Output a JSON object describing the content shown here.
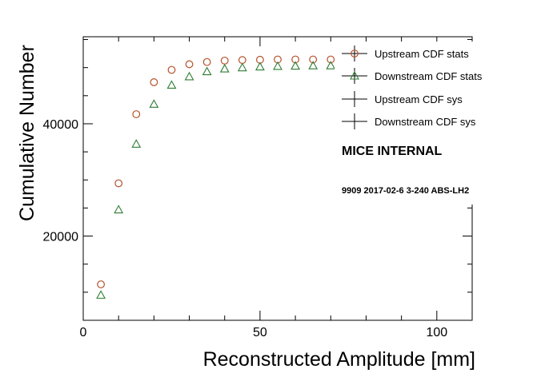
{
  "chart_data": {
    "type": "scatter",
    "xlabel": "Reconstructed Amplitude [mm]",
    "ylabel": "Cumulative Number",
    "xlim": [
      0,
      110
    ],
    "ylim": [
      5000,
      55500
    ],
    "x_ticks": [
      0,
      50,
      100
    ],
    "y_ticks": [
      20000,
      40000
    ],
    "x_tick_labels": [
      "0",
      "50",
      "100"
    ],
    "y_tick_labels": [
      "20000",
      "40000"
    ],
    "grid": false,
    "legend_position": "top-right",
    "series": [
      {
        "name": "Upstream CDF stats",
        "marker": "open-circle",
        "color": "#b5512b",
        "x": [
          5,
          10,
          15,
          20,
          25,
          30,
          35,
          40,
          45,
          50,
          55,
          60,
          65,
          70,
          75
        ],
        "y": [
          11400,
          29400,
          41700,
          47400,
          49600,
          50600,
          51000,
          51250,
          51350,
          51400,
          51450,
          51450,
          51450,
          51450,
          51450
        ]
      },
      {
        "name": "Downstream CDF stats",
        "marker": "open-triangle",
        "color": "#2e7d32",
        "x": [
          5,
          10,
          15,
          20,
          25,
          30,
          35,
          40,
          45,
          50,
          55,
          60,
          65,
          70,
          75
        ],
        "y": [
          9500,
          24700,
          36400,
          43500,
          46900,
          48400,
          49300,
          49800,
          50000,
          50150,
          50250,
          50300,
          50350,
          50350,
          50350
        ]
      },
      {
        "name": "Upstream CDF sys",
        "marker": "cross",
        "color": "#000000",
        "x": [],
        "y": []
      },
      {
        "name": "Downstream CDF sys",
        "marker": "cross",
        "color": "#000000",
        "x": [],
        "y": []
      }
    ],
    "annotations": [
      "MICE INTERNAL",
      "9909 2017-02-6 3-240 ABS-LH2"
    ]
  }
}
